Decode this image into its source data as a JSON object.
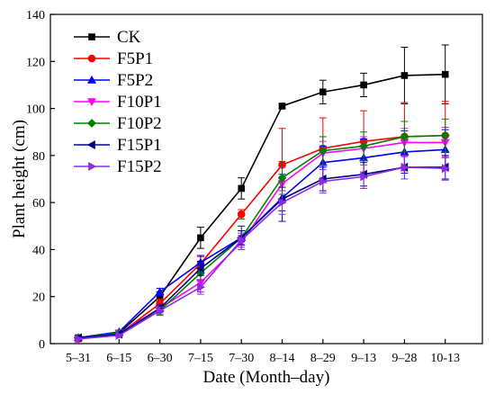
{
  "chart_data": {
    "type": "line",
    "title": "",
    "xlabel": "Date (Month–day)",
    "ylabel": "Plant height (cm)",
    "x": [
      "5–31",
      "6–15",
      "6–30",
      "7–15",
      "7–30",
      "8–14",
      "8–29",
      "9–13",
      "9–28",
      "10-13"
    ],
    "ylim": [
      0,
      140
    ],
    "yticks": [
      0,
      20,
      40,
      60,
      80,
      100,
      120,
      140
    ],
    "grid": false,
    "legend_position": "top-left",
    "series": [
      {
        "name": "CK",
        "color": "#000000",
        "marker": "square",
        "values": [
          2.5,
          4.5,
          20,
          45,
          66,
          101,
          107,
          110,
          114,
          114.5
        ],
        "errors": [
          1,
          1,
          2,
          4.5,
          4.5,
          1,
          5,
          5,
          12,
          12.5
        ]
      },
      {
        "name": "F5P1",
        "color": "#ff0000",
        "marker": "circle",
        "values": [
          2,
          4,
          17,
          34,
          55,
          76,
          83,
          86,
          88,
          88.5
        ],
        "errors": [
          0.5,
          0.5,
          2,
          3,
          2,
          15.5,
          13,
          13,
          14.5,
          14.5
        ]
      },
      {
        "name": "F5P2",
        "color": "#0000ff",
        "marker": "triangle-up",
        "values": [
          2.5,
          5,
          22,
          34.5,
          45,
          62,
          77,
          79,
          81.5,
          82.5
        ],
        "errors": [
          0.5,
          0.5,
          1.5,
          3,
          5,
          10,
          7,
          8,
          9,
          8.5
        ]
      },
      {
        "name": "F10P1",
        "color": "#ff00ff",
        "marker": "triangle-down",
        "values": [
          2,
          4.5,
          15,
          26,
          43,
          68,
          81,
          83,
          85.5,
          85.5
        ],
        "errors": [
          0.5,
          0.5,
          1.5,
          4,
          3,
          7,
          5,
          5,
          6,
          6.5
        ]
      },
      {
        "name": "F10P2",
        "color": "#008000",
        "marker": "diamond",
        "values": [
          2.5,
          4.5,
          14,
          30,
          45,
          70.5,
          82,
          84,
          88,
          88.5
        ],
        "errors": [
          0.5,
          0.5,
          2,
          3,
          3,
          7,
          6,
          6,
          6.5,
          7
        ]
      },
      {
        "name": "F15P1",
        "color": "#00008b",
        "marker": "triangle-left",
        "values": [
          2.5,
          4,
          15,
          32,
          45,
          61.5,
          70,
          72,
          75,
          75
        ],
        "errors": [
          0.5,
          0.5,
          1.5,
          3,
          3,
          5,
          5,
          5,
          5,
          5
        ]
      },
      {
        "name": "F15P2",
        "color": "#8a2be2",
        "marker": "triangle-right",
        "values": [
          2,
          3.5,
          14,
          24,
          44,
          60,
          69,
          71,
          75,
          74.5
        ],
        "errors": [
          0.5,
          0.5,
          1.5,
          3,
          3,
          5,
          5,
          5,
          5,
          5
        ]
      }
    ]
  }
}
